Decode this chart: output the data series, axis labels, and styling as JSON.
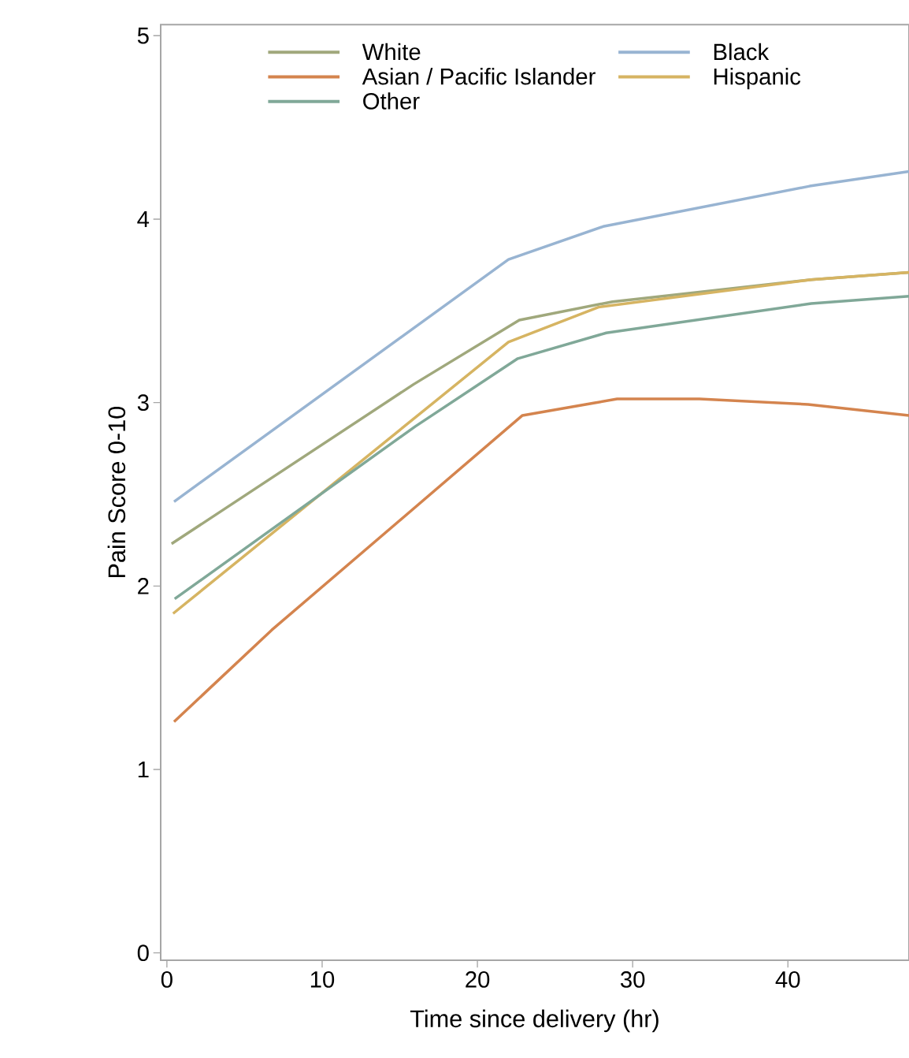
{
  "chart_data": {
    "type": "line",
    "xlabel": "Time since delivery (hr)",
    "ylabel": "Pain Score 0-10",
    "xlim": [
      -0.4,
      47.8
    ],
    "ylim": [
      -0.04,
      5.06
    ],
    "xticks": [
      0,
      10,
      20,
      30,
      40
    ],
    "yticks": [
      0,
      1,
      2,
      3,
      4,
      5
    ],
    "legend": "top",
    "grid": false,
    "line_style": "solid",
    "marker": "none",
    "series": [
      {
        "name": "White",
        "color": "#a0a87c",
        "x": [
          0.3,
          15.9,
          22.7,
          28.7,
          41.5,
          47.8
        ],
        "values": [
          2.23,
          3.1,
          3.45,
          3.55,
          3.67,
          3.71
        ]
      },
      {
        "name": "Black",
        "color": "#98b4d2",
        "x": [
          0.46,
          22,
          28.1,
          41.4,
          47.8
        ],
        "values": [
          2.46,
          3.78,
          3.96,
          4.18,
          4.26
        ]
      },
      {
        "name": "Asian / Pacific Islander",
        "color": "#d4844e",
        "x": [
          0.46,
          6.75,
          22.9,
          29,
          34.3,
          41.3,
          47.8
        ],
        "values": [
          1.26,
          1.76,
          2.93,
          3.02,
          3.02,
          2.99,
          2.93
        ]
      },
      {
        "name": "Hispanic",
        "color": "#d6b462",
        "x": [
          0.4,
          22,
          27.8,
          41.5,
          47.8
        ],
        "values": [
          1.85,
          3.33,
          3.52,
          3.67,
          3.71
        ]
      },
      {
        "name": "Other",
        "color": "#80a898",
        "x": [
          0.5,
          16,
          22.6,
          28.3,
          41.5,
          47.8
        ],
        "values": [
          1.93,
          2.87,
          3.24,
          3.38,
          3.54,
          3.58
        ]
      }
    ]
  }
}
